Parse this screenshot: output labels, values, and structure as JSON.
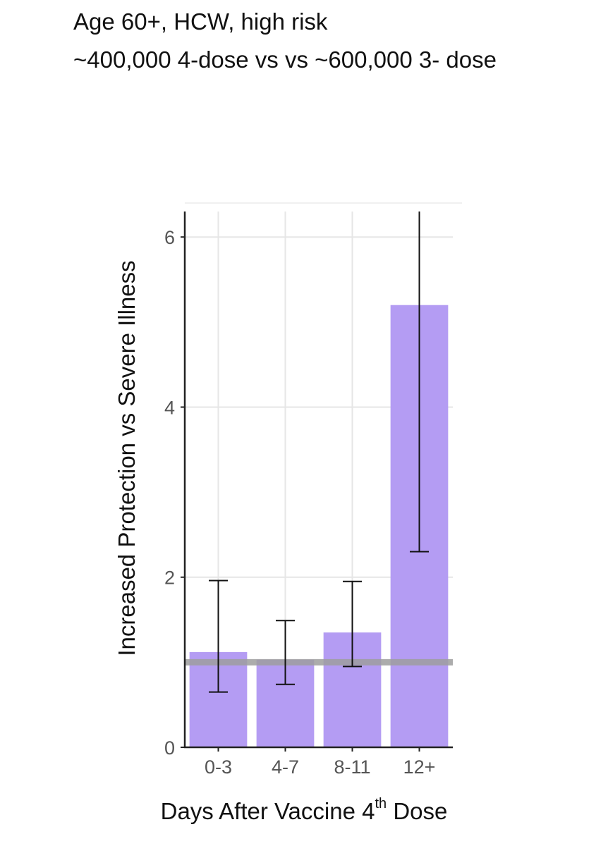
{
  "header": {
    "line1": "Age 60+, HCW, high risk",
    "line2": "~400,000 4-dose vs  vs ~600,000 3- dose"
  },
  "colors": {
    "bar": "#b49cf3",
    "reference_line": "#9e9e9e",
    "grid": "#e6e6e6",
    "axis": "#222222",
    "error_bar": "#111111",
    "tick_text": "#555555"
  },
  "chart_data": {
    "type": "bar",
    "xlabel": {
      "text_main": "Days After Vaccine 4",
      "text_sup": "th",
      "text_end": " Dose"
    },
    "ylabel": "Increased Protection vs Severe Illness",
    "categories": [
      "0-3",
      "4-7",
      "8-11",
      "12+"
    ],
    "values": [
      1.12,
      1.03,
      1.35,
      5.2
    ],
    "error_low": [
      0.65,
      0.74,
      0.95,
      2.3
    ],
    "error_high": [
      1.96,
      1.49,
      1.95,
      6.3
    ],
    "reference_line": 1.0,
    "yticks": [
      0,
      2,
      4,
      6
    ],
    "ylim": [
      0,
      6.3
    ],
    "grid": true
  }
}
